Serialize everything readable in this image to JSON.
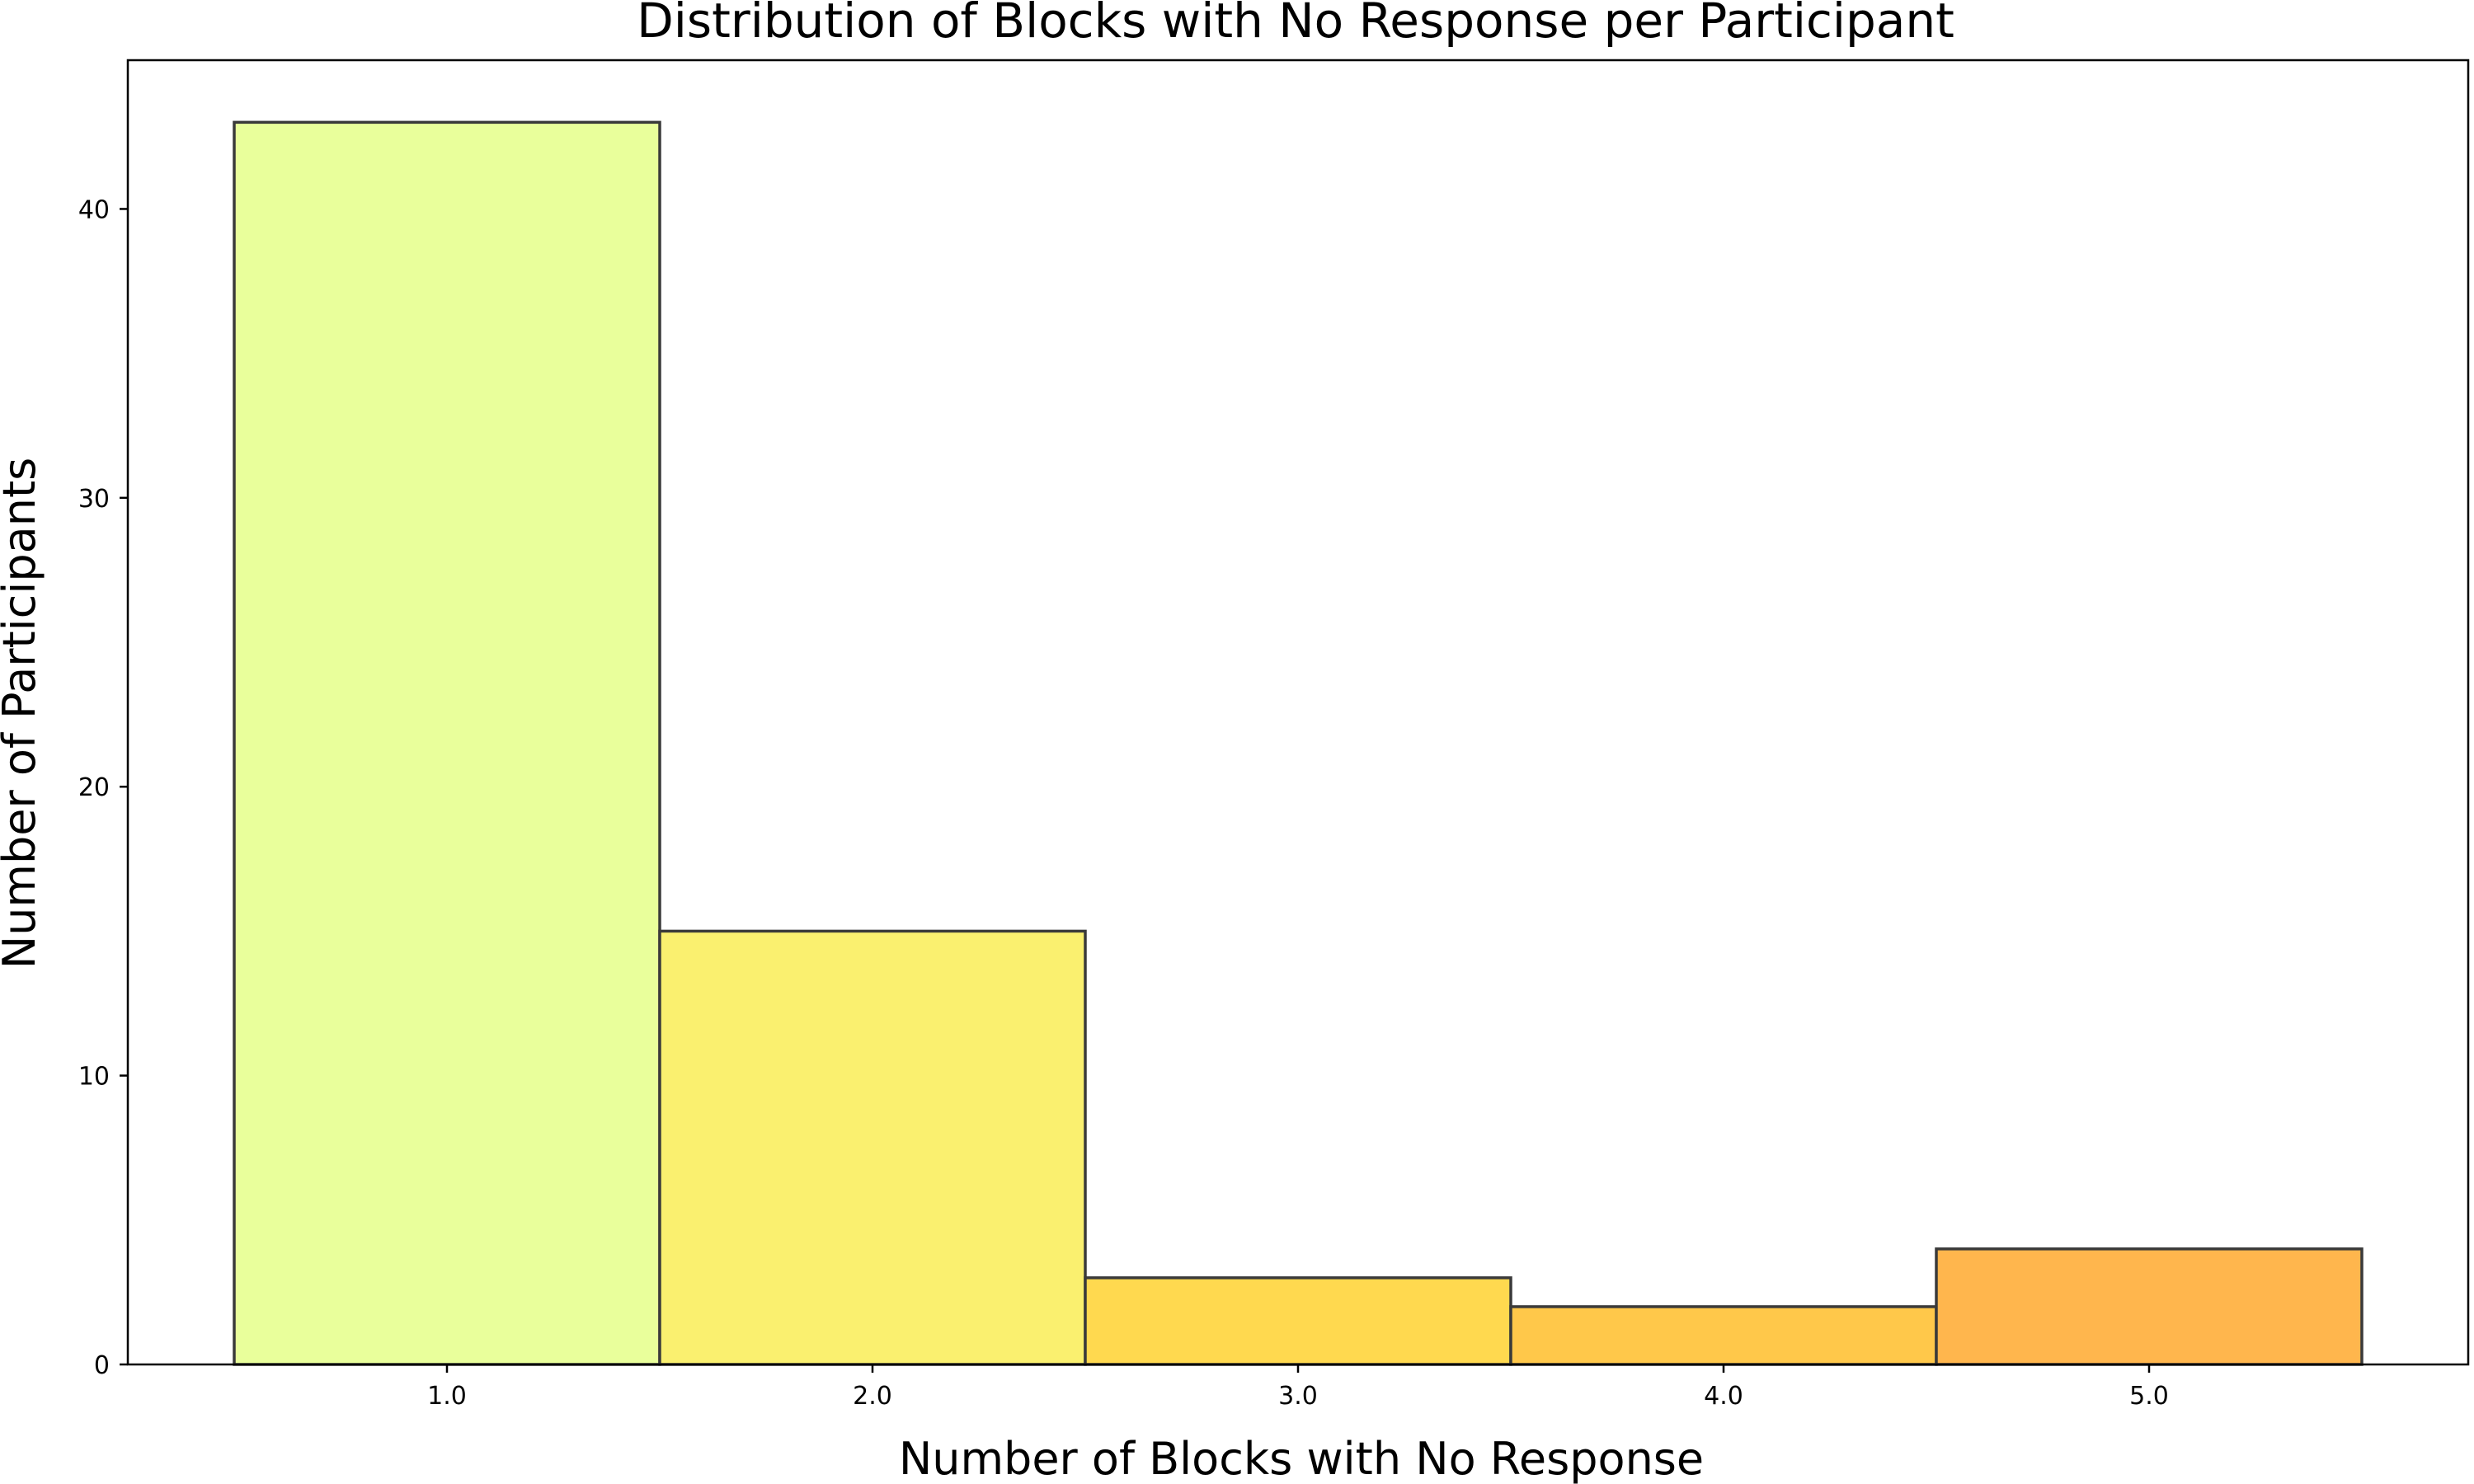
{
  "chart_data": {
    "type": "bar",
    "title": "Distribution of Blocks with No Response per Participant",
    "xlabel": "Number of Blocks with No Response",
    "ylabel": "Number of Participants",
    "categories": [
      "1.0",
      "2.0",
      "3.0",
      "4.0",
      "5.0"
    ],
    "x": [
      1.0,
      2.0,
      3.0,
      4.0,
      5.0
    ],
    "values": [
      43,
      15,
      3,
      2,
      4
    ],
    "colors": [
      "#e9ff9b",
      "#faf06f",
      "#ffd94f",
      "#ffc84a",
      "#ffb64d"
    ],
    "edge_color": "#3a3a3a",
    "xlim": [
      0.25,
      5.75
    ],
    "ylim": [
      0,
      45.15
    ],
    "yticks": [
      0,
      10,
      20,
      30,
      40
    ],
    "grid": false,
    "legend": "none"
  }
}
